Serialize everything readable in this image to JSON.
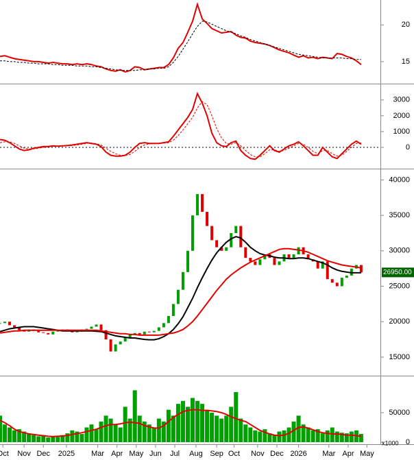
{
  "chart_data": [
    {
      "type": "line",
      "ylim": [
        12.1,
        23.2
      ],
      "yticks": [
        15,
        20
      ],
      "series": [
        {
          "color": "#e00000",
          "values": [
            15.7,
            15.8,
            15.6,
            15.4,
            15.3,
            15.2,
            15.1,
            15.0,
            15.0,
            14.9,
            14.8,
            14.9,
            14.8,
            14.7,
            14.7,
            14.6,
            14.7,
            14.6,
            14.7,
            14.6,
            14.4,
            14.3,
            14.0,
            13.8,
            13.7,
            13.9,
            13.6,
            13.8,
            14.3,
            14.2,
            13.9,
            14.0,
            14.1,
            14.2,
            14.2,
            14.6,
            15.5,
            16.8,
            17.6,
            19.0,
            20.5,
            22.8,
            20.8,
            20.2,
            19.5,
            19.2,
            18.9,
            19.0,
            19.1,
            18.6,
            18.3,
            18.2,
            17.8,
            17.6,
            17.5,
            17.4,
            17.2,
            16.9,
            16.6,
            16.4,
            16.2,
            15.9,
            15.6,
            15.8,
            15.5,
            15.6,
            15.4,
            15.6,
            15.5,
            15.4,
            16.1,
            16.0,
            15.7,
            15.5,
            15.1,
            14.6
          ]
        },
        {
          "color": "#000000",
          "dashed": true,
          "values": [
            15.1,
            15.1,
            15.0,
            15.0,
            14.9,
            14.9,
            14.8,
            14.8,
            14.7,
            14.7,
            14.7,
            14.6,
            14.6,
            14.5,
            14.5,
            14.5,
            14.4,
            14.4,
            14.4,
            14.3,
            14.3,
            14.2,
            14.1,
            14.0,
            13.9,
            13.8,
            13.8,
            13.8,
            13.8,
            13.9,
            13.9,
            14.0,
            14.0,
            14.1,
            14.1,
            14.3,
            14.9,
            15.7,
            16.7,
            17.7,
            18.8,
            19.8,
            20.5,
            20.4,
            20.1,
            19.8,
            19.5,
            19.2,
            19.0,
            18.8,
            18.5,
            18.3,
            18.0,
            17.8,
            17.6,
            17.4,
            17.2,
            17.0,
            16.8,
            16.6,
            16.4,
            16.2,
            16.0,
            15.9,
            15.8,
            15.7,
            15.6,
            15.5,
            15.5,
            15.5,
            15.5,
            15.5,
            15.4,
            15.4,
            15.3,
            15.3
          ]
        }
      ]
    },
    {
      "type": "line",
      "ylim": [
        -1300,
        3900
      ],
      "yticks": [
        0,
        1000,
        2000,
        3000
      ],
      "zero_line": true,
      "series": [
        {
          "color": "#e00000",
          "values": [
            500,
            450,
            300,
            100,
            -100,
            -200,
            -150,
            -50,
            0,
            50,
            50,
            100,
            80,
            100,
            120,
            150,
            200,
            250,
            300,
            250,
            200,
            50,
            -300,
            -500,
            -550,
            -550,
            -500,
            -300,
            0,
            250,
            300,
            250,
            250,
            250,
            300,
            350,
            700,
            1100,
            1500,
            1900,
            2400,
            3400,
            2800,
            2000,
            900,
            300,
            100,
            50,
            300,
            400,
            -200,
            -500,
            -700,
            -750,
            -500,
            -200,
            100,
            -200,
            -300,
            -100,
            100,
            200,
            350,
            100,
            -200,
            -500,
            -500,
            0,
            -300,
            -600,
            -700,
            -400,
            -100,
            200,
            400,
            200
          ]
        },
        {
          "color": "#e00000",
          "dashed": true,
          "values": [
            300,
            350,
            350,
            250,
            100,
            -50,
            -100,
            -100,
            -50,
            0,
            30,
            60,
            80,
            90,
            100,
            120,
            150,
            200,
            250,
            270,
            240,
            150,
            -50,
            -250,
            -400,
            -500,
            -500,
            -450,
            -250,
            0,
            150,
            230,
            250,
            250,
            270,
            300,
            450,
            750,
            1100,
            1500,
            1900,
            2500,
            2900,
            2700,
            2000,
            1200,
            600,
            250,
            200,
            300,
            100,
            -200,
            -450,
            -600,
            -600,
            -400,
            -150,
            -150,
            -250,
            -200,
            -50,
            100,
            250,
            200,
            0,
            -250,
            -400,
            -200,
            -200,
            -400,
            -550,
            -500,
            -250,
            0,
            250,
            300
          ]
        }
      ]
    },
    {
      "type": "candlestick",
      "ylim": [
        12480,
        41300
      ],
      "yticks": [
        15000,
        20000,
        25000,
        30000,
        35000,
        40000
      ],
      "up_color": "#00a000",
      "down_color": "#e00000",
      "last_price": 26950,
      "last_price_label": "26950.00",
      "values": [
        19800,
        20000,
        19500,
        19200,
        18800,
        18600,
        18900,
        18700,
        18500,
        18400,
        18200,
        18600,
        18800,
        18900,
        18700,
        18500,
        18600,
        18900,
        19000,
        19300,
        19600,
        18800,
        17500,
        15800,
        16800,
        17200,
        17800,
        18200,
        18400,
        18200,
        18600,
        18500,
        18700,
        19200,
        19800,
        20800,
        22500,
        24500,
        27000,
        30000,
        35000,
        38000,
        35500,
        33500,
        31500,
        30500,
        30000,
        30500,
        32500,
        33500,
        30500,
        29000,
        28500,
        28000,
        28800,
        29500,
        29000,
        28000,
        28500,
        29500,
        29000,
        29500,
        30500,
        29500,
        28800,
        28500,
        27500,
        28500,
        26000,
        25500,
        25000,
        26200,
        26500,
        27500,
        28000,
        26950
      ],
      "series": [
        {
          "color": "#000000",
          "values": [
            18600,
            18800,
            19000,
            19100,
            19200,
            19300,
            19300,
            19300,
            19200,
            19100,
            19000,
            18900,
            18800,
            18700,
            18700,
            18700,
            18700,
            18700,
            18700,
            18700,
            18650,
            18600,
            18400,
            18200,
            18000,
            17900,
            17800,
            17700,
            17700,
            17600,
            17500,
            17450,
            17450,
            17600,
            17900,
            18300,
            18900,
            19700,
            20700,
            22000,
            23300,
            24800,
            26200,
            27500,
            28700,
            29700,
            30500,
            31200,
            31700,
            32000,
            31800,
            31200,
            30500,
            30000,
            29600,
            29400,
            29300,
            29100,
            29000,
            29000,
            28900,
            28900,
            29000,
            29000,
            28900,
            28700,
            28500,
            28300,
            28000,
            27600,
            27300,
            27100,
            27000,
            26900,
            26900,
            26900
          ]
        },
        {
          "color": "#e00000",
          "values": [
            18400,
            18500,
            18600,
            18700,
            18700,
            18800,
            18800,
            18800,
            18800,
            18800,
            18800,
            18800,
            18800,
            18800,
            18800,
            18800,
            18800,
            18800,
            18800,
            18800,
            18800,
            18700,
            18600,
            18500,
            18400,
            18300,
            18300,
            18200,
            18200,
            18100,
            18100,
            18100,
            18100,
            18100,
            18200,
            18300,
            18400,
            18600,
            18900,
            19400,
            20000,
            20800,
            21700,
            22600,
            23500,
            24400,
            25200,
            26000,
            26600,
            27100,
            27600,
            28000,
            28400,
            28700,
            29000,
            29300,
            29600,
            29900,
            30200,
            30300,
            30300,
            30200,
            30100,
            30000,
            29800,
            29500,
            29200,
            28900,
            28600,
            28400,
            28200,
            28000,
            27900,
            27800,
            27700,
            27600
          ]
        }
      ]
    },
    {
      "type": "bar",
      "ylim": [
        0,
        109300
      ],
      "yticks": [
        0,
        50000
      ],
      "unit_label": "x1000",
      "color": "#00a000",
      "values": [
        45000,
        30000,
        25000,
        20000,
        22000,
        18000,
        15000,
        12000,
        10000,
        12000,
        8000,
        10000,
        9000,
        12000,
        15000,
        20000,
        18000,
        14000,
        25000,
        30000,
        22000,
        35000,
        45000,
        40000,
        30000,
        25000,
        60000,
        40000,
        88000,
        45000,
        35000,
        30000,
        25000,
        40000,
        35000,
        55000,
        45000,
        65000,
        70000,
        60000,
        75000,
        70000,
        65000,
        55000,
        50000,
        45000,
        40000,
        45000,
        60000,
        85000,
        40000,
        30000,
        25000,
        20000,
        18000,
        22000,
        15000,
        12000,
        18000,
        20000,
        25000,
        35000,
        45000,
        30000,
        25000,
        20000,
        22000,
        15000,
        20000,
        25000,
        18000,
        16000,
        15000,
        18000,
        20000,
        14000
      ],
      "series": [
        {
          "color": "#e00000",
          "values": [
            37000,
            33000,
            28000,
            22000,
            18000,
            16000,
            14000,
            13000,
            12000,
            11000,
            10000,
            9500,
            10000,
            10500,
            11500,
            13000,
            14500,
            16000,
            18000,
            20000,
            22000,
            25000,
            28000,
            30000,
            30000,
            31000,
            33000,
            34000,
            33000,
            32000,
            28000,
            26000,
            24000,
            24000,
            28000,
            35000,
            42000,
            47000,
            52000,
            54000,
            55000,
            55000,
            54000,
            54000,
            53000,
            52000,
            50000,
            47000,
            43000,
            40000,
            37000,
            35000,
            30000,
            25000,
            20000,
            17000,
            14000,
            12000,
            11000,
            12000,
            15000,
            20000,
            25000,
            26000,
            24000,
            21000,
            18000,
            16000,
            15000,
            14000,
            14000,
            13000,
            12000,
            12000,
            11000,
            10000
          ]
        }
      ],
      "x": [
        0,
        1,
        2,
        3,
        4,
        5,
        6,
        7,
        8,
        9,
        10,
        11,
        12,
        13,
        14,
        15,
        16,
        17,
        18,
        19,
        20,
        21,
        22,
        23,
        24,
        25,
        26,
        27,
        28,
        29,
        30,
        31,
        32,
        33,
        34,
        35,
        36,
        37,
        38,
        39,
        40,
        41,
        42,
        43,
        44,
        45,
        46,
        47,
        48,
        49,
        50,
        51,
        52,
        53,
        54,
        55,
        56,
        57,
        58,
        59,
        60,
        61,
        62,
        63,
        64,
        65,
        66,
        67,
        68,
        69,
        70,
        71,
        72,
        73,
        74,
        75
      ],
      "xlim": [
        0,
        79
      ],
      "xticks": [
        {
          "value": 0.6,
          "label": "Oct"
        },
        {
          "value": 5,
          "label": "Nov"
        },
        {
          "value": 9,
          "label": "Dec"
        },
        {
          "value": 13.8,
          "label": "2025"
        },
        {
          "value": 20.3,
          "label": "Mar"
        },
        {
          "value": 24.3,
          "label": "Apr"
        },
        {
          "value": 28.3,
          "label": "May"
        },
        {
          "value": 32.3,
          "label": "Jun"
        },
        {
          "value": 36.3,
          "label": "Jul"
        },
        {
          "value": 40.7,
          "label": "Aug"
        },
        {
          "value": 45,
          "label": "Sep"
        },
        {
          "value": 48.6,
          "label": "Oct"
        },
        {
          "value": 53.5,
          "label": "Nov"
        },
        {
          "value": 57.5,
          "label": "Dec"
        },
        {
          "value": 62,
          "label": "2026"
        },
        {
          "value": 68.3,
          "label": "Mar"
        },
        {
          "value": 72.3,
          "label": "Apr"
        },
        {
          "value": 76.2,
          "label": "May"
        }
      ]
    }
  ]
}
